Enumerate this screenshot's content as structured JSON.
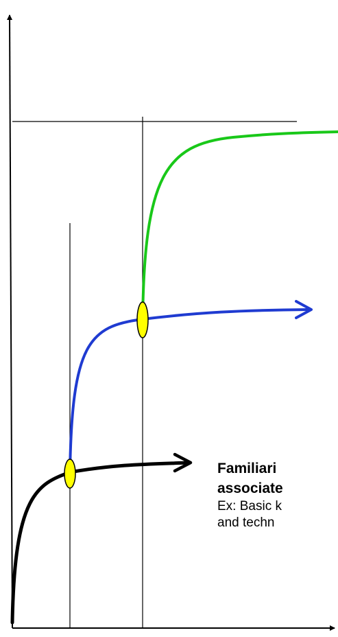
{
  "colors": {
    "background": "#ffffff",
    "axes": "#000000",
    "guide_lines": "#000000",
    "curve_basic": "#000000",
    "curve_middle": "#1f3bd1",
    "curve_top": "#19c819",
    "transition_marker_fill": "#ffff00",
    "transition_marker_stroke": "#000000"
  },
  "curves": [
    {
      "id": "basic",
      "color_key": "curve_basic"
    },
    {
      "id": "middle",
      "color_key": "curve_middle"
    },
    {
      "id": "top",
      "color_key": "curve_top"
    }
  ],
  "markers": [
    {
      "id": "marker-1",
      "connects": [
        "basic",
        "middle"
      ]
    },
    {
      "id": "marker-2",
      "connects": [
        "middle",
        "top"
      ]
    }
  ],
  "text": {
    "line1": "Familiari",
    "line2": "associate",
    "line3": "Ex: Basic k",
    "line4": "and techn"
  }
}
